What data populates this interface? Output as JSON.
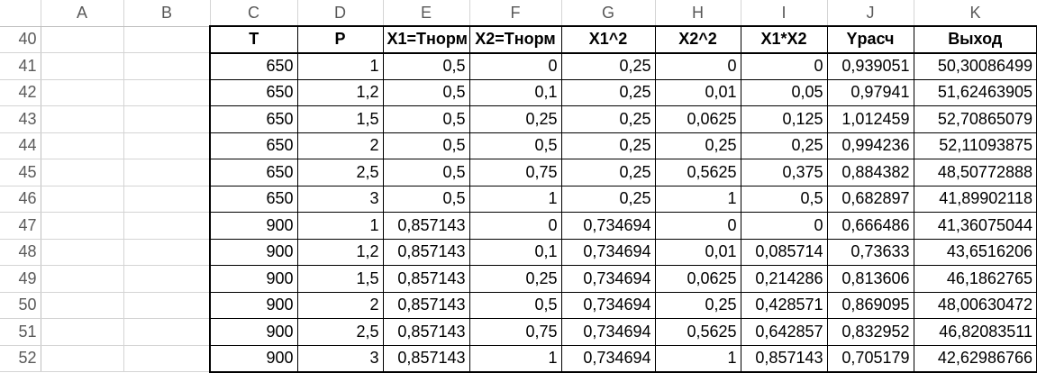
{
  "columns": [
    "",
    "A",
    "B",
    "C",
    "D",
    "E",
    "F",
    "G",
    "H",
    "I",
    "J",
    "K"
  ],
  "header_row": {
    "row": "40",
    "cells": [
      "T",
      "P",
      "X1=Tнорм",
      "X2=Tнорм",
      "X1^2",
      "X2^2",
      "X1*X2",
      "Yрасч",
      "Выход"
    ]
  },
  "rows": [
    {
      "row": "41",
      "cells": [
        "650",
        "1",
        "0,5",
        "0",
        "0,25",
        "0",
        "0",
        "0,939051",
        "50,30086499"
      ]
    },
    {
      "row": "42",
      "cells": [
        "650",
        "1,2",
        "0,5",
        "0,1",
        "0,25",
        "0,01",
        "0,05",
        "0,97941",
        "51,62463905"
      ]
    },
    {
      "row": "43",
      "cells": [
        "650",
        "1,5",
        "0,5",
        "0,25",
        "0,25",
        "0,0625",
        "0,125",
        "1,012459",
        "52,70865079"
      ]
    },
    {
      "row": "44",
      "cells": [
        "650",
        "2",
        "0,5",
        "0,5",
        "0,25",
        "0,25",
        "0,25",
        "0,994236",
        "52,11093875"
      ]
    },
    {
      "row": "45",
      "cells": [
        "650",
        "2,5",
        "0,5",
        "0,75",
        "0,25",
        "0,5625",
        "0,375",
        "0,884382",
        "48,50772888"
      ]
    },
    {
      "row": "46",
      "cells": [
        "650",
        "3",
        "0,5",
        "1",
        "0,25",
        "1",
        "0,5",
        "0,682897",
        "41,89902118"
      ]
    },
    {
      "row": "47",
      "cells": [
        "900",
        "1",
        "0,857143",
        "0",
        "0,734694",
        "0",
        "0",
        "0,666486",
        "41,36075044"
      ]
    },
    {
      "row": "48",
      "cells": [
        "900",
        "1,2",
        "0,857143",
        "0,1",
        "0,734694",
        "0,01",
        "0,085714",
        "0,73633",
        "43,6516206"
      ]
    },
    {
      "row": "49",
      "cells": [
        "900",
        "1,5",
        "0,857143",
        "0,25",
        "0,734694",
        "0,0625",
        "0,214286",
        "0,813606",
        "46,1862765"
      ]
    },
    {
      "row": "50",
      "cells": [
        "900",
        "2",
        "0,857143",
        "0,5",
        "0,734694",
        "0,25",
        "0,428571",
        "0,869095",
        "48,00630472"
      ]
    },
    {
      "row": "51",
      "cells": [
        "900",
        "2,5",
        "0,857143",
        "0,75",
        "0,734694",
        "0,5625",
        "0,642857",
        "0,832952",
        "46,82083511"
      ]
    },
    {
      "row": "52",
      "cells": [
        "900",
        "3",
        "0,857143",
        "1",
        "0,734694",
        "1",
        "0,857143",
        "0,705179",
        "42,62986766"
      ]
    }
  ]
}
